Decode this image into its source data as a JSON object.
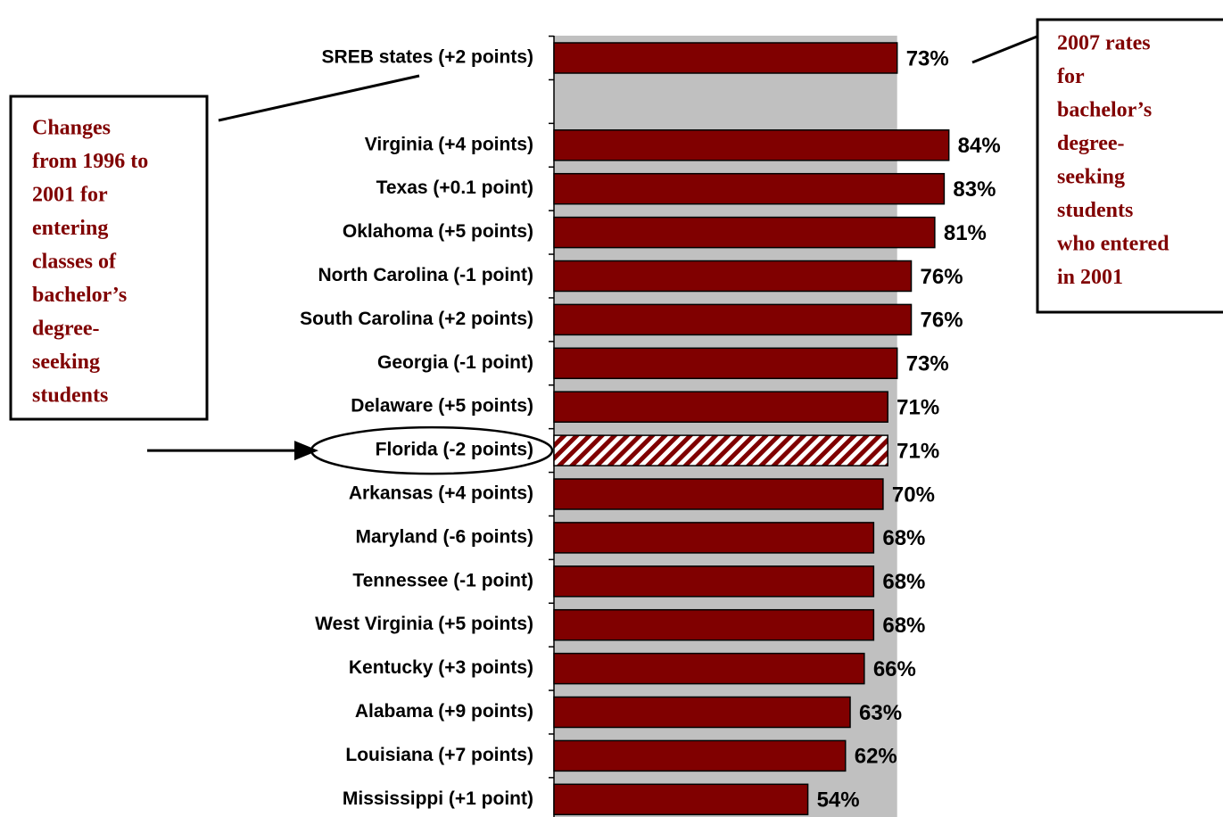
{
  "chart_data": {
    "type": "hbar",
    "categories": [
      "SREB states (+2 points)",
      null,
      "Virginia (+4 points)",
      "Texas (+0.1 point)",
      "Oklahoma (+5 points)",
      "North Carolina (-1 point)",
      "South Carolina (+2 points)",
      "Georgia (-1 point)",
      "Delaware (+5 points)",
      "Florida (-2 points)",
      "Arkansas (+4 points)",
      "Maryland (-6 points)",
      "Tennessee (-1 point)",
      "West Virginia (+5 points)",
      "Kentucky (+3 points)",
      "Alabama (+9 points)",
      "Louisiana (+7 points)",
      "Mississippi (+1 point)"
    ],
    "values": [
      73,
      null,
      84,
      83,
      81,
      76,
      76,
      73,
      71,
      71,
      70,
      68,
      68,
      68,
      66,
      63,
      62,
      54
    ],
    "value_labels": [
      "73%",
      null,
      "84%",
      "83%",
      "81%",
      "76%",
      "76%",
      "73%",
      "71%",
      "71%",
      "70%",
      "68%",
      "68%",
      "68%",
      "66%",
      "63%",
      "62%",
      "54%"
    ],
    "color": "#800000",
    "plot_background": "#c0c0c0",
    "xlim": [
      0,
      73
    ],
    "highlight": {
      "index": 9,
      "style": "hatched",
      "circled": true,
      "arrow": true
    },
    "annotations": [
      {
        "lines": [
          "Changes",
          "from 1996 to",
          "2001 for",
          "entering",
          "classes of",
          "bachelor’s",
          "degree-",
          "seeking",
          "students"
        ]
      },
      {
        "lines": [
          "2007 rates",
          "for",
          "bachelor’s",
          "degree-",
          "seeking",
          "students",
          "who entered",
          "in 2001"
        ]
      }
    ]
  }
}
